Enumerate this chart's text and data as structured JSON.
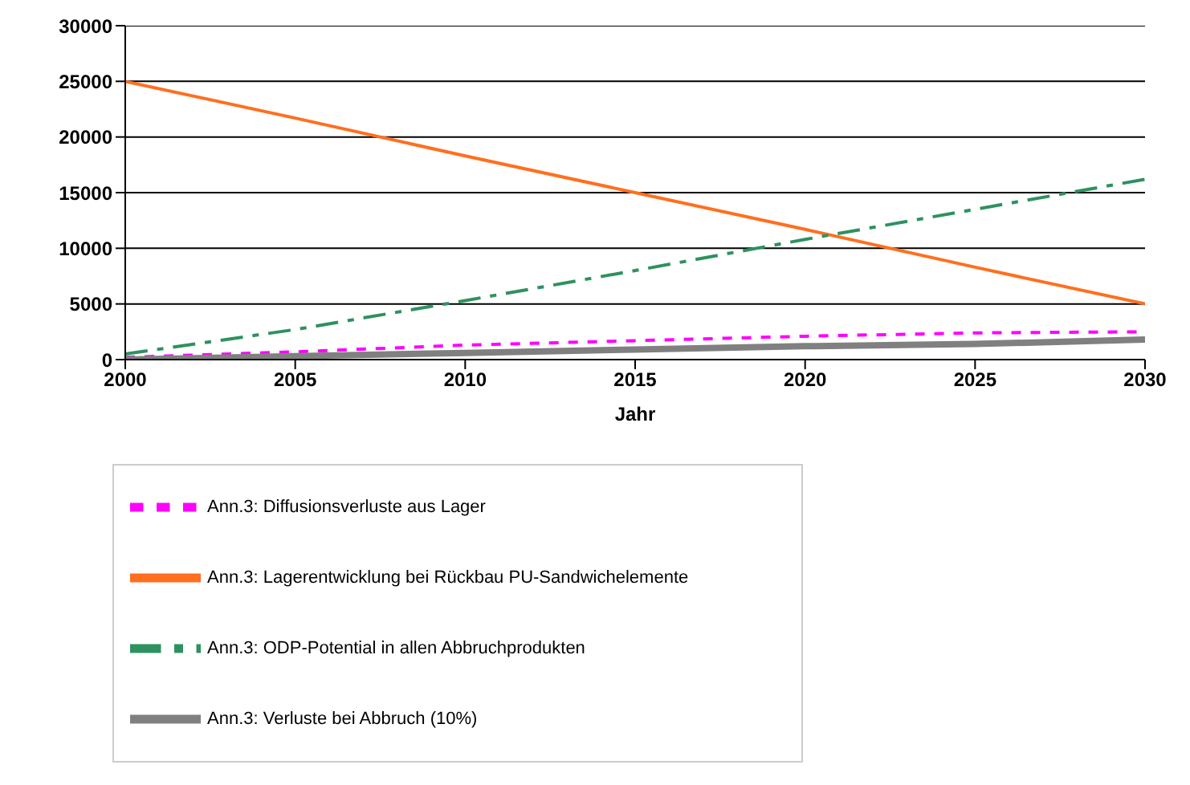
{
  "chart_data": {
    "type": "line",
    "xlabel": "Jahr",
    "x": [
      2000,
      2005,
      2010,
      2015,
      2020,
      2025,
      2030
    ],
    "series": [
      {
        "name": "Ann.3: Lagerentwicklung bei Rückbau PU-Sandwichelemente",
        "color": "#ff6f1f",
        "line_style": "solid",
        "values": [
          25000,
          21700,
          18300,
          15000,
          11700,
          8300,
          5000
        ]
      },
      {
        "name": "Ann.3: Diffusionsverluste aus Lager",
        "color": "#ff00ff",
        "line_style": "dotted",
        "values": [
          200,
          700,
          1300,
          1700,
          2100,
          2400,
          2500
        ]
      },
      {
        "name": "Ann.3: ODP-Potential in allen Abbruchprodukten",
        "color": "#2e9160",
        "line_style": "dashed",
        "values": [
          500,
          2700,
          5300,
          8000,
          10800,
          13500,
          16200
        ]
      },
      {
        "name": "Ann.3: Verluste bei Abbruch (10%)",
        "color": "#808080",
        "line_style": "solid",
        "values": [
          0,
          300,
          600,
          900,
          1200,
          1400,
          1800
        ]
      }
    ],
    "xlim": [
      2000,
      2030
    ],
    "xticks": [
      2000,
      2005,
      2010,
      2015,
      2020,
      2025,
      2030
    ],
    "ylim": [
      0,
      30000
    ],
    "yticks": [
      0,
      5000,
      10000,
      15000,
      20000,
      25000,
      30000
    ],
    "grid": "y",
    "legend": "bottom",
    "marker": "none"
  }
}
